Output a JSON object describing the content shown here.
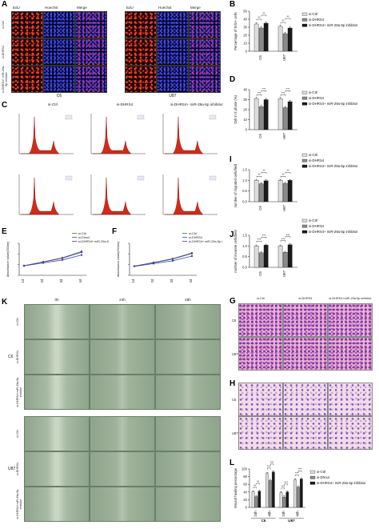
{
  "panels": {
    "A": "A",
    "B": "B",
    "C": "C",
    "D": "D",
    "E": "E",
    "F": "F",
    "G": "G",
    "H": "H",
    "I": "I",
    "J": "J",
    "K": "K",
    "L": "L"
  },
  "panel_a": {
    "cell_lines": [
      "C6",
      "U87"
    ],
    "columns": [
      "EdU",
      "Hoechst",
      "Merge"
    ],
    "rows": [
      "si-Ctrl",
      "si-DHRS4",
      "si-DHRS4+ miR-29a-5p inhibitor"
    ]
  },
  "panel_c": {
    "columns": [
      "si-Ctrl",
      "si-DHRS4",
      "si-DHRS4+ miR-29a-5p inhibitor"
    ]
  },
  "panel_g": {
    "columns": [
      "si-Ctrl",
      "si-DHRS4",
      "si-DHRS4+miR-29a-5p inhibitor"
    ],
    "rows": [
      "C6",
      "U87"
    ]
  },
  "panel_h": {
    "rows": [
      "C6",
      "U87"
    ]
  },
  "panel_k": {
    "times": [
      "0h",
      "24h",
      "48h"
    ],
    "cell_lines": [
      "C6",
      "U87"
    ],
    "rows": [
      "si-Ctrl",
      "si-DHRS4",
      "si-DHRS4+miR-29a-5p inhibitor"
    ]
  },
  "colors": {
    "ctrl": "#dcdcdc",
    "dhrs4": "#8a8a8a",
    "combo": "#1a1a1a",
    "peak": "#d22a1a"
  },
  "chart_data": [
    {
      "panel": "B",
      "type": "bar",
      "categories": [
        "C6",
        "U87"
      ],
      "ylabel": "Percentage of EdU+ cells",
      "ylim": [
        0,
        50
      ],
      "yticks": [
        "0",
        "10",
        "20",
        "30",
        "40",
        "50"
      ],
      "legend": [
        "si-Ctrl",
        "si-DHRS4",
        "si-DHRS4+ miR-29a-5p inhibitor"
      ],
      "series": [
        {
          "name": "si-Ctrl",
          "values": [
            34,
            31
          ]
        },
        {
          "name": "si-DHRS4",
          "values": [
            29,
            22
          ]
        },
        {
          "name": "si-DHRS4+ miR-29a-5p inhibitor",
          "values": [
            35,
            29
          ]
        }
      ],
      "sig": [
        "**",
        "**",
        "**",
        "**"
      ]
    },
    {
      "panel": "D",
      "type": "bar",
      "categories": [
        "C6",
        "U87"
      ],
      "ylabel": "Cell in S phase (%)",
      "ylim": [
        0,
        40
      ],
      "yticks": [
        "0",
        "10",
        "20",
        "30",
        "40"
      ],
      "legend": [
        "si-Ctrl",
        "si-DHRS4",
        "si-DHRS4+ miR-29a-5p inhibitor"
      ],
      "series": [
        {
          "name": "si-Ctrl",
          "values": [
            31,
            31
          ]
        },
        {
          "name": "si-DHRS4",
          "values": [
            23,
            22
          ]
        },
        {
          "name": "si-DHRS4+ miR-29a-5p inhibitor",
          "values": [
            30,
            28
          ]
        }
      ],
      "sig": [
        "***",
        "***",
        "***",
        "***"
      ]
    },
    {
      "panel": "I",
      "type": "bar",
      "categories": [
        "C6",
        "U87"
      ],
      "ylabel": "number of migrated cells/field",
      "ylim": [
        0,
        1.5
      ],
      "yticks": [
        "0.0",
        "0.5",
        "1.0",
        "1.5"
      ],
      "legend": [
        "si-Ctrl",
        "si-DHRS4",
        "si-DHRS4+ miR-29a-5p inhibitor"
      ],
      "series": [
        {
          "name": "si-Ctrl",
          "values": [
            1.0,
            1.0
          ]
        },
        {
          "name": "si-DHRS4",
          "values": [
            0.84,
            0.86
          ]
        },
        {
          "name": "si-DHRS4+ miR-29a-5p inhibitor",
          "values": [
            0.98,
            1.0
          ]
        }
      ],
      "sig": [
        "**",
        "**",
        "**",
        "**"
      ]
    },
    {
      "panel": "J",
      "type": "bar",
      "categories": [
        "C6",
        "U87"
      ],
      "ylabel": "number of invasive cells/field",
      "ylim": [
        0,
        1.5
      ],
      "yticks": [
        "0.0",
        "0.5",
        "1.0",
        "1.5"
      ],
      "legend": [
        "si-Ctrl",
        "si-DHRS4",
        "si-DHRS4+ miR-29a-5p inhibitor"
      ],
      "series": [
        {
          "name": "si-Ctrl",
          "values": [
            1.0,
            1.0
          ]
        },
        {
          "name": "si-DHRS4",
          "values": [
            0.68,
            0.7
          ]
        },
        {
          "name": "si-DHRS4+ miR-29a-5p inhibitor",
          "values": [
            1.04,
            1.06
          ]
        }
      ],
      "sig": [
        "***",
        "***",
        "***",
        "***"
      ]
    },
    {
      "panel": "L",
      "type": "bar",
      "categories": [
        "24h",
        "48h",
        "24h",
        "48h"
      ],
      "groups": [
        "C6",
        "U87"
      ],
      "ylabel": "Wound healing percentage",
      "ylim": [
        0,
        100
      ],
      "yticks": [
        "0",
        "20",
        "40",
        "60",
        "80",
        "100"
      ],
      "legend": [
        "si-Ctrl",
        "si-Dhrs4",
        "si-DHRS4+ miR-29a-5p inhibitor"
      ],
      "series": [
        {
          "name": "si-Ctrl",
          "values": [
            40,
            88,
            38,
            72
          ]
        },
        {
          "name": "si-Dhrs4",
          "values": [
            28,
            70,
            27,
            53
          ]
        },
        {
          "name": "si-DHRS4+ miR-29a-5p inhibitor",
          "values": [
            42,
            92,
            40,
            74
          ]
        }
      ],
      "sig": [
        "**",
        "**",
        "***",
        "***",
        "***",
        "***",
        "***",
        "***"
      ]
    },
    {
      "panel": "E",
      "type": "line",
      "x": [
        "1d",
        "2d",
        "3d",
        "4d"
      ],
      "ylabel": "Absorbance value(450nm)",
      "ylim": [
        0,
        1.5
      ],
      "legend": [
        "si-Ctrl",
        "si-Dhrs4",
        "si-DHRS4+ miR-29a-5p inhibitor"
      ],
      "series": [
        {
          "name": "si-Ctrl",
          "values": [
            0.45,
            0.63,
            0.82,
            1.12
          ],
          "color": "#2d8a2d"
        },
        {
          "name": "si-Dhrs4",
          "values": [
            0.44,
            0.58,
            0.72,
            0.95
          ],
          "color": "#2d4fb5"
        },
        {
          "name": "si-DHRS4+ miR-29a-5p inhibitor",
          "values": [
            0.45,
            0.62,
            0.8,
            1.08
          ],
          "color": "#6a2da8"
        }
      ]
    },
    {
      "panel": "F",
      "type": "line",
      "x": [
        "1d",
        "2d",
        "3d",
        "4d"
      ],
      "ylabel": "Absorbance value(450nm)",
      "ylim": [
        0,
        1.5
      ],
      "legend": [
        "si-Ctrl",
        "si-DHRS4",
        "si-DHRS4+ miR-29a-5p inhibitor"
      ],
      "series": [
        {
          "name": "si-Ctrl",
          "values": [
            0.43,
            0.6,
            0.78,
            1.05
          ],
          "color": "#2d8a2d"
        },
        {
          "name": "si-DHRS4",
          "values": [
            0.42,
            0.55,
            0.68,
            0.9
          ],
          "color": "#2d4fb5"
        },
        {
          "name": "si-DHRS4+ miR-29a-5p inhibitor",
          "values": [
            0.43,
            0.59,
            0.76,
            1.02
          ],
          "color": "#6a2da8"
        }
      ]
    }
  ]
}
